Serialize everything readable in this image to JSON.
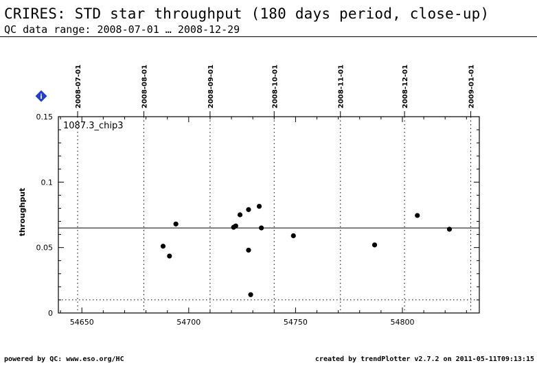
{
  "header": {
    "title": "CRIRES: STD star throughput (180 days period, close-up)",
    "subtitle": "QC data range: 2008-07-01 … 2008-12-29"
  },
  "footer": {
    "left": "powered by QC: www.eso.org/HC",
    "right": "created by trendPlotter v2.7.2 on 2011-05-11T09:13:15"
  },
  "info_icon": {
    "name": "info-icon",
    "glyph": "i",
    "color": "#1f3fd6"
  },
  "chart_data": {
    "type": "scatter",
    "xlim": [
      54639,
      54836
    ],
    "ylim": [
      0,
      0.15
    ],
    "ylabel": "throughput",
    "annotation": "1087.3_chip3",
    "x_ticks": [
      54650,
      54700,
      54750,
      54800
    ],
    "y_ticks": [
      0,
      0.05,
      0.1,
      0.15
    ],
    "y_tick_labels": [
      "0",
      "0.05",
      "0.1",
      "0.15"
    ],
    "date_ticks": [
      {
        "label": "2008-07-01",
        "mjd": 54648
      },
      {
        "label": "2008-08-01",
        "mjd": 54679
      },
      {
        "label": "2008-09-01",
        "mjd": 54710
      },
      {
        "label": "2008-10-01",
        "mjd": 54740
      },
      {
        "label": "2008-11-01",
        "mjd": 54771
      },
      {
        "label": "2008-12-01",
        "mjd": 54801
      },
      {
        "label": "2009-01-01",
        "mjd": 54832
      }
    ],
    "reference_line": 0.065,
    "lower_threshold": 0.01,
    "grid": true,
    "points": [
      {
        "x": 54688,
        "y": 0.051
      },
      {
        "x": 54691,
        "y": 0.0435
      },
      {
        "x": 54694,
        "y": 0.068
      },
      {
        "x": 54721,
        "y": 0.0655
      },
      {
        "x": 54722,
        "y": 0.0665
      },
      {
        "x": 54724,
        "y": 0.075
      },
      {
        "x": 54728,
        "y": 0.079
      },
      {
        "x": 54728,
        "y": 0.048
      },
      {
        "x": 54729,
        "y": 0.014
      },
      {
        "x": 54733,
        "y": 0.0815
      },
      {
        "x": 54734,
        "y": 0.065
      },
      {
        "x": 54749,
        "y": 0.059
      },
      {
        "x": 54787,
        "y": 0.052
      },
      {
        "x": 54807,
        "y": 0.0745
      },
      {
        "x": 54822,
        "y": 0.064
      }
    ],
    "marker_color": "#000000"
  }
}
